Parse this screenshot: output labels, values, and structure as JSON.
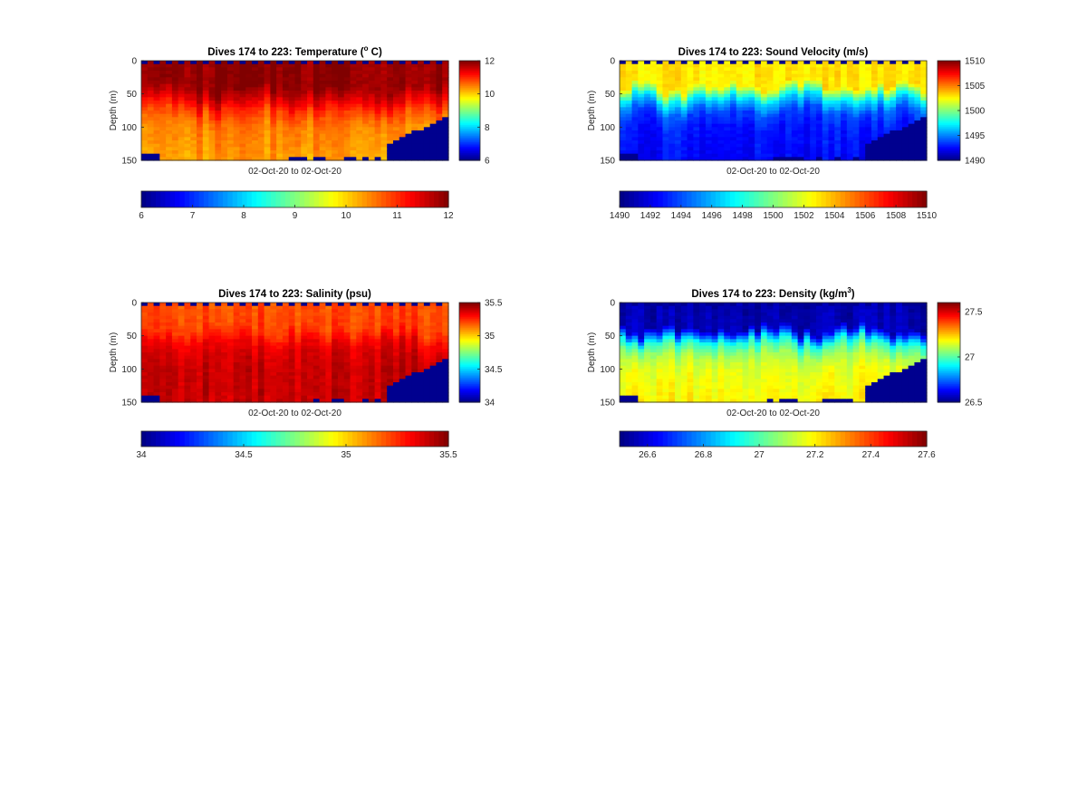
{
  "chart_data": [
    {
      "type": "heatmap",
      "title": "Dives 174 to 223: Temperature (",
      "title_sup": "o",
      "title_tail": " C)",
      "xlabel": "02-Oct-20 to 02-Oct-20",
      "ylabel": "Depth (m)",
      "yticks": [
        "0",
        "50",
        "100",
        "150"
      ],
      "ylim": [
        0,
        150
      ],
      "y_reversed": true,
      "colormap": "jet",
      "cmin": 6,
      "cmax": 12,
      "side_colorbar_ticks": [
        "12",
        "10",
        "8",
        "6"
      ],
      "side_colorbar_values": [
        12,
        10,
        8,
        6
      ],
      "bottom_colorbar_ticks": [
        "6",
        "7",
        "8",
        "9",
        "10",
        "11",
        "12"
      ],
      "bottom_colorbar_values": [
        6,
        7,
        8,
        9,
        10,
        11,
        12
      ],
      "n_dives": 50,
      "profile": [
        {
          "depth": 0,
          "value": 11.9
        },
        {
          "depth": 40,
          "value": 11.9
        },
        {
          "depth": 60,
          "value": 11.4
        },
        {
          "depth": 80,
          "value": 10.8
        },
        {
          "depth": 100,
          "value": 10.5
        },
        {
          "depth": 150,
          "value": 10.3
        }
      ],
      "missing_color": "#00008f"
    },
    {
      "type": "heatmap",
      "title": "Dives 174 to 223: Sound Velocity (m/s)",
      "title_sup": "",
      "title_tail": "",
      "xlabel": "02-Oct-20 to 02-Oct-20",
      "ylabel": "Depth (m)",
      "yticks": [
        "0",
        "50",
        "100",
        "150"
      ],
      "ylim": [
        0,
        150
      ],
      "y_reversed": true,
      "colormap": "jet",
      "cmin": 1490,
      "cmax": 1510,
      "side_colorbar_ticks": [
        "1510",
        "1505",
        "1500",
        "1495",
        "1490"
      ],
      "side_colorbar_values": [
        1510,
        1505,
        1500,
        1495,
        1490
      ],
      "bottom_colorbar_ticks": [
        "1490",
        "1492",
        "1494",
        "1496",
        "1498",
        "1500",
        "1502",
        "1504",
        "1506",
        "1508",
        "1510"
      ],
      "bottom_colorbar_values": [
        1490,
        1492,
        1494,
        1496,
        1498,
        1500,
        1502,
        1504,
        1506,
        1508,
        1510
      ],
      "n_dives": 50,
      "profile": [
        {
          "depth": 0,
          "value": 1503
        },
        {
          "depth": 40,
          "value": 1503
        },
        {
          "depth": 60,
          "value": 1497
        },
        {
          "depth": 80,
          "value": 1494
        },
        {
          "depth": 100,
          "value": 1493
        },
        {
          "depth": 150,
          "value": 1492.5
        }
      ],
      "missing_color": "#00008f"
    },
    {
      "type": "heatmap",
      "title": "Dives 174 to 223: Salinity (psu)",
      "title_sup": "",
      "title_tail": "",
      "xlabel": "02-Oct-20 to 02-Oct-20",
      "ylabel": "Depth (m)",
      "yticks": [
        "0",
        "50",
        "100",
        "150"
      ],
      "ylim": [
        0,
        150
      ],
      "y_reversed": true,
      "colormap": "jet",
      "cmin": 34,
      "cmax": 35.5,
      "side_colorbar_ticks": [
        "35.5",
        "35",
        "34.5",
        "34"
      ],
      "side_colorbar_values": [
        35.5,
        35,
        34.5,
        34
      ],
      "bottom_colorbar_ticks": [
        "34",
        "34.5",
        "35",
        "35.5"
      ],
      "bottom_colorbar_values": [
        34,
        34.5,
        35,
        35.5
      ],
      "n_dives": 50,
      "profile": [
        {
          "depth": 0,
          "value": 35.2
        },
        {
          "depth": 40,
          "value": 35.22
        },
        {
          "depth": 60,
          "value": 35.33
        },
        {
          "depth": 80,
          "value": 35.38
        },
        {
          "depth": 100,
          "value": 35.4
        },
        {
          "depth": 150,
          "value": 35.4
        }
      ],
      "missing_color": "#00008f"
    },
    {
      "type": "heatmap",
      "title": "Dives 174 to 223: Density (kg/m",
      "title_sup": "3",
      "title_tail": ")",
      "xlabel": "02-Oct-20 to 02-Oct-20",
      "ylabel": "Depth (m)",
      "yticks": [
        "0",
        "50",
        "100",
        "150"
      ],
      "ylim": [
        0,
        150
      ],
      "y_reversed": true,
      "colormap": "jet",
      "cmin": 26.5,
      "cmax": 27.6,
      "side_colorbar_ticks": [
        "27.5",
        "27",
        "26.5"
      ],
      "side_colorbar_values": [
        27.5,
        27,
        26.5
      ],
      "bottom_colorbar_ticks": [
        "26.6",
        "26.8",
        "27",
        "27.2",
        "27.4",
        "27.6"
      ],
      "bottom_colorbar_values": [
        26.6,
        26.8,
        27,
        27.2,
        27.4,
        27.6
      ],
      "n_dives": 50,
      "profile": [
        {
          "depth": 0,
          "value": 26.55
        },
        {
          "depth": 40,
          "value": 26.56
        },
        {
          "depth": 60,
          "value": 26.95
        },
        {
          "depth": 80,
          "value": 27.1
        },
        {
          "depth": 100,
          "value": 27.16
        },
        {
          "depth": 150,
          "value": 27.2
        }
      ],
      "missing_color": "#00008f"
    }
  ]
}
